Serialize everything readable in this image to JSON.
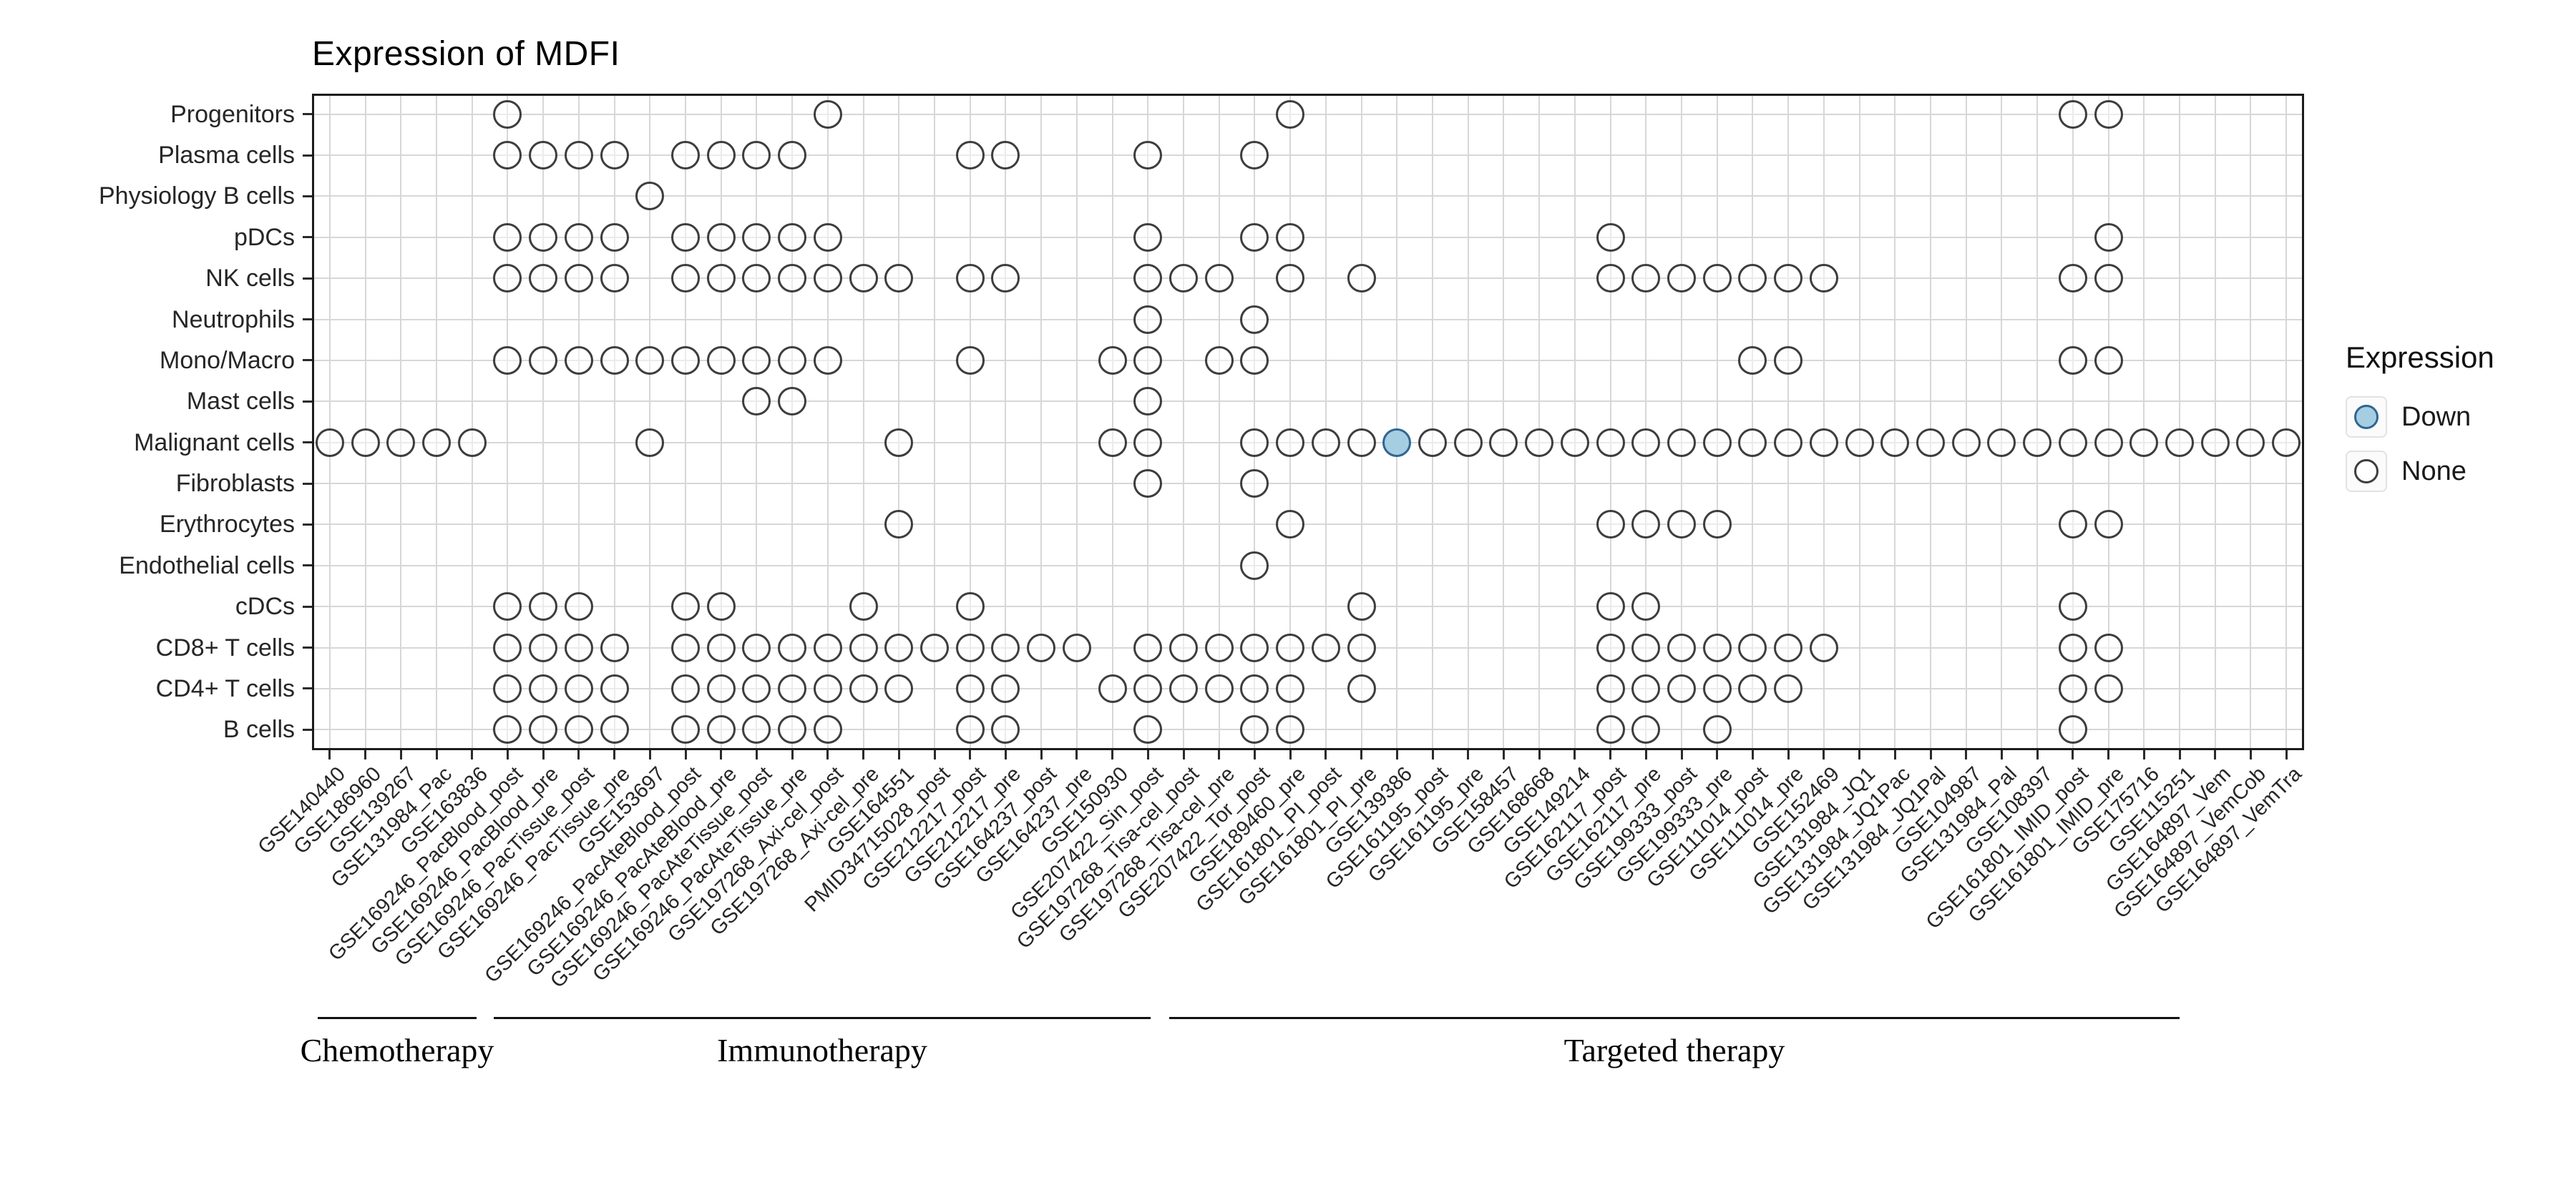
{
  "title": "Expression of MDFI",
  "legend": {
    "title": "Expression",
    "items": [
      {
        "label": "Down"
      },
      {
        "label": "None"
      }
    ]
  },
  "colors": {
    "down_fill": "#A6CEE3",
    "down_stroke": "#2F6690",
    "none_fill": "#FFFFFF",
    "none_stroke": "#3D3D3D"
  },
  "chart_data": {
    "type": "scatter",
    "title": "Expression of MDFI",
    "legend_title": "Expression",
    "legend_values": [
      "Down",
      "None"
    ],
    "grid": true,
    "rows": [
      "Progenitors",
      "Plasma cells",
      "Physiology B cells",
      "pDCs",
      "NK cells",
      "Neutrophils",
      "Mono/Macro",
      "Mast cells",
      "Malignant cells",
      "Fibroblasts",
      "Erythrocytes",
      "Endothelial cells",
      "cDCs",
      "CD8+ T cells",
      "CD4+ T cells",
      "B cells"
    ],
    "columns": [
      "GSE140440",
      "GSE186960",
      "GSE139267",
      "GSE131984_Pac",
      "GSE163836",
      "GSE169246_PacBlood_post",
      "GSE169246_PacBlood_pre",
      "GSE169246_PacTissue_post",
      "GSE169246_PacTissue_pre",
      "GSE153697",
      "GSE169246_PacAteBlood_post",
      "GSE169246_PacAteBlood_pre",
      "GSE169246_PacAteTissue_post",
      "GSE169246_PacAteTissue_pre",
      "GSE197268_Axi-cel_post",
      "GSE197268_Axi-cel_pre",
      "GSE164551",
      "PMID34715028_post",
      "GSE212217_post",
      "GSE212217_pre",
      "GSE164237_post",
      "GSE164237_pre",
      "GSE150930",
      "GSE207422_Sin_post",
      "GSE197268_Tisa-cel_post",
      "GSE197268_Tisa-cel_pre",
      "GSE207422_Tor_post",
      "GSE189460_pre",
      "GSE161801_PI_post",
      "GSE161801_PI_pre",
      "GSE139386",
      "GSE161195_post",
      "GSE161195_pre",
      "GSE158457",
      "GSE168668",
      "GSE149214",
      "GSE162117_post",
      "GSE162117_pre",
      "GSE199333_post",
      "GSE199333_pre",
      "GSE111014_post",
      "GSE111014_pre",
      "GSE152469",
      "GSE131984_JQ1",
      "GSE131984_JQ1Pac",
      "GSE131984_JQ1Pal",
      "GSE104987",
      "GSE131984_Pal",
      "GSE108397",
      "GSE161801_IMID_post",
      "GSE161801_IMID_pre",
      "GSE175716",
      "GSE115251",
      "GSE164897_Vem",
      "GSE164897_VemCob",
      "GSE164897_VemTra"
    ],
    "groups": [
      {
        "label": "Chemotherapy",
        "col_start": 1,
        "col_end": 5
      },
      {
        "label": "Immunotherapy",
        "col_start": 6,
        "col_end": 26
      },
      {
        "label": "Targeted therapy",
        "col_start": 27,
        "col_end": 56
      }
    ],
    "cells": [
      {
        "row": "Progenitors",
        "none_cols": [
          6,
          15,
          28,
          50,
          51
        ]
      },
      {
        "row": "Plasma cells",
        "none_cols": [
          6,
          7,
          8,
          9,
          11,
          12,
          13,
          14,
          19,
          20,
          24,
          27
        ]
      },
      {
        "row": "Physiology B cells",
        "none_cols": [
          10
        ]
      },
      {
        "row": "pDCs",
        "none_cols": [
          6,
          7,
          8,
          9,
          11,
          12,
          13,
          14,
          15,
          24,
          27,
          28,
          37,
          51
        ]
      },
      {
        "row": "NK cells",
        "none_cols": [
          6,
          7,
          8,
          9,
          11,
          12,
          13,
          14,
          15,
          16,
          17,
          19,
          20,
          24,
          25,
          26,
          28,
          30,
          37,
          38,
          39,
          40,
          41,
          42,
          43,
          50,
          51
        ]
      },
      {
        "row": "Neutrophils",
        "none_cols": [
          24,
          27
        ]
      },
      {
        "row": "Mono/Macro",
        "none_cols": [
          6,
          7,
          8,
          9,
          10,
          11,
          12,
          13,
          14,
          15,
          19,
          23,
          24,
          26,
          27,
          41,
          42,
          50,
          51
        ]
      },
      {
        "row": "Mast cells",
        "none_cols": [
          13,
          14,
          24
        ]
      },
      {
        "row": "Malignant cells",
        "none_cols": [
          1,
          2,
          3,
          4,
          5,
          10,
          17,
          23,
          24,
          27,
          28,
          29,
          30,
          32,
          33,
          34,
          35,
          36,
          37,
          38,
          39,
          40,
          41,
          42,
          43,
          44,
          45,
          46,
          47,
          48,
          49,
          50,
          51,
          52,
          53,
          54,
          55,
          56
        ]
      },
      {
        "row": "Fibroblasts",
        "none_cols": [
          24,
          27
        ]
      },
      {
        "row": "Erythrocytes",
        "none_cols": [
          17,
          28,
          37,
          38,
          39,
          40,
          50,
          51
        ]
      },
      {
        "row": "Endothelial cells",
        "none_cols": [
          27
        ]
      },
      {
        "row": "cDCs",
        "none_cols": [
          6,
          7,
          8,
          11,
          12,
          16,
          19,
          30,
          37,
          38,
          50
        ]
      },
      {
        "row": "CD8+ T cells",
        "none_cols": [
          6,
          7,
          8,
          9,
          11,
          12,
          13,
          14,
          15,
          16,
          17,
          18,
          19,
          20,
          21,
          22,
          24,
          25,
          26,
          27,
          28,
          29,
          30,
          37,
          38,
          39,
          40,
          41,
          42,
          43,
          50,
          51
        ]
      },
      {
        "row": "CD4+ T cells",
        "none_cols": [
          6,
          7,
          8,
          9,
          11,
          12,
          13,
          14,
          15,
          16,
          17,
          19,
          20,
          23,
          24,
          25,
          26,
          27,
          28,
          30,
          37,
          38,
          39,
          40,
          41,
          42,
          50,
          51
        ]
      },
      {
        "row": "B cells",
        "none_cols": [
          6,
          7,
          8,
          9,
          11,
          12,
          13,
          14,
          15,
          19,
          20,
          24,
          27,
          28,
          37,
          38,
          40,
          50
        ]
      }
    ],
    "down_cells": [
      {
        "row": "Malignant cells",
        "column": "GSE139386"
      }
    ]
  }
}
